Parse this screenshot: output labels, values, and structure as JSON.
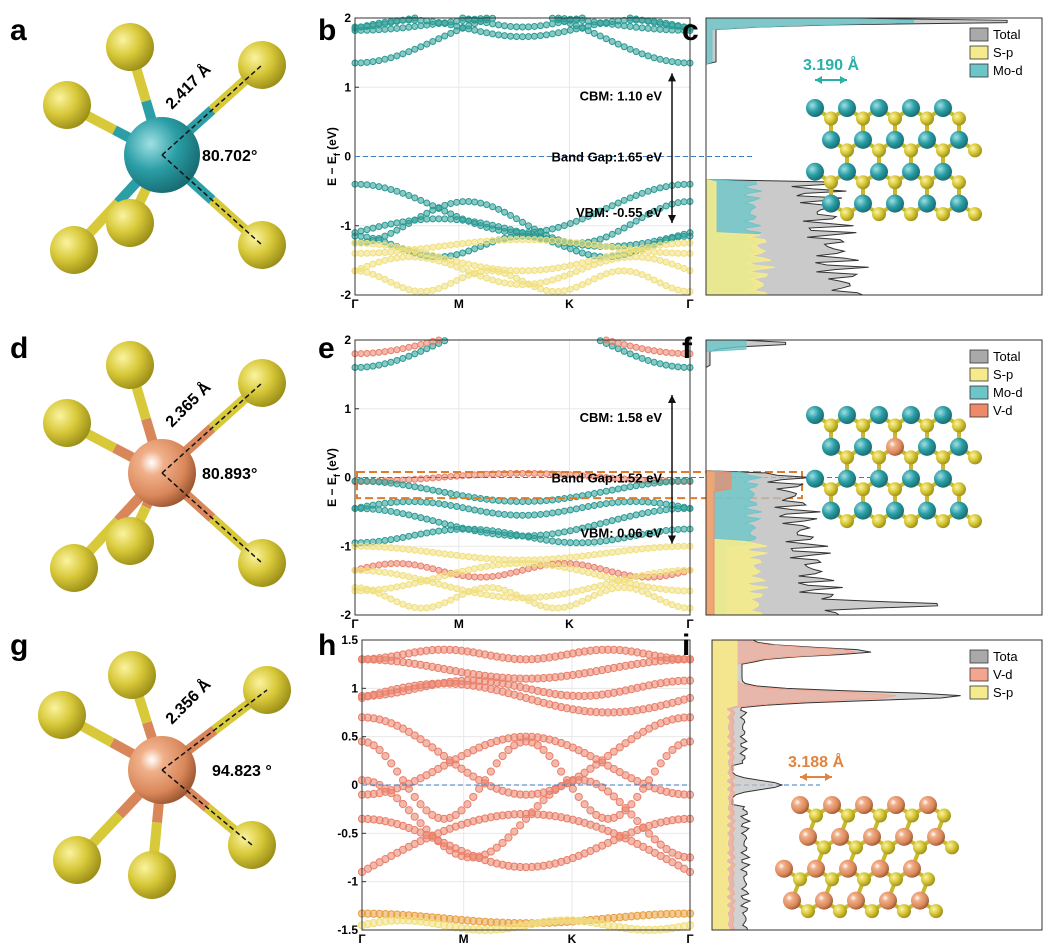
{
  "rows": [
    {
      "structure": {
        "letter": "a",
        "bond": "2.417 Å",
        "angle": "80.702°",
        "center_color": "#2b9ea6"
      },
      "bands": {
        "letter": "b",
        "ylabel": "E − E",
        "ylabel_sub": "f",
        "ylabel_unit": " (eV)",
        "ylim": [
          -2,
          2
        ],
        "yticks": [
          -2,
          -1,
          0,
          1,
          2
        ],
        "categories": [
          "Γ",
          "M",
          "K",
          "Γ"
        ],
        "annotations": [
          "CBM: 1.10 eV",
          "Band Gap:1.65 eV",
          "VBM: -0.55 eV"
        ]
      },
      "dos": {
        "letter": "c",
        "lattice": "3.190 Å",
        "lattice_color": "#2bb0a8",
        "legend": [
          {
            "name": "Total",
            "color": "#a9a9a9"
          },
          {
            "name": "S-p",
            "color": "#f5eb8c"
          },
          {
            "name": "Mo-d",
            "color": "#6cc5c8"
          }
        ]
      }
    },
    {
      "structure": {
        "letter": "d",
        "bond": "2.365 Å",
        "angle": "80.893°",
        "center_color": "#d9875a"
      },
      "bands": {
        "letter": "e",
        "ylabel": "E − E",
        "ylabel_sub": "f",
        "ylabel_unit": " (eV)",
        "ylim": [
          -2,
          2
        ],
        "yticks": [
          -2,
          -1,
          0,
          1,
          2
        ],
        "categories": [
          "Γ",
          "M",
          "K",
          "Γ"
        ],
        "annotations": [
          "CBM: 1.58 eV",
          "Band Gap:1.52 eV",
          "VBM: 0.06 eV"
        ]
      },
      "dos": {
        "letter": "f",
        "legend": [
          {
            "name": "Total",
            "color": "#a9a9a9"
          },
          {
            "name": "S-p",
            "color": "#f5eb8c"
          },
          {
            "name": "Mo-d",
            "color": "#6cc5c8"
          },
          {
            "name": "V-d",
            "color": "#ee8a6a"
          }
        ]
      }
    },
    {
      "structure": {
        "letter": "g",
        "bond": "2.356 Å",
        "angle": "94.823 °",
        "center_color": "#d9875a"
      },
      "bands": {
        "letter": "h",
        "ylim": [
          -1.5,
          1.5
        ],
        "yticks": [
          -1.5,
          -1,
          -0.5,
          0,
          0.5,
          1,
          1.5
        ],
        "categories": [
          "Γ",
          "M",
          "K",
          "Γ"
        ]
      },
      "dos": {
        "letter": "i",
        "lattice": "3.188 Å",
        "lattice_color": "#e0843f",
        "legend": [
          {
            "name": "Tota",
            "color": "#a9a9a9"
          },
          {
            "name": "V-d",
            "color": "#f4a58f"
          },
          {
            "name": "S-p",
            "color": "#f5eb8c"
          }
        ]
      }
    }
  ]
}
